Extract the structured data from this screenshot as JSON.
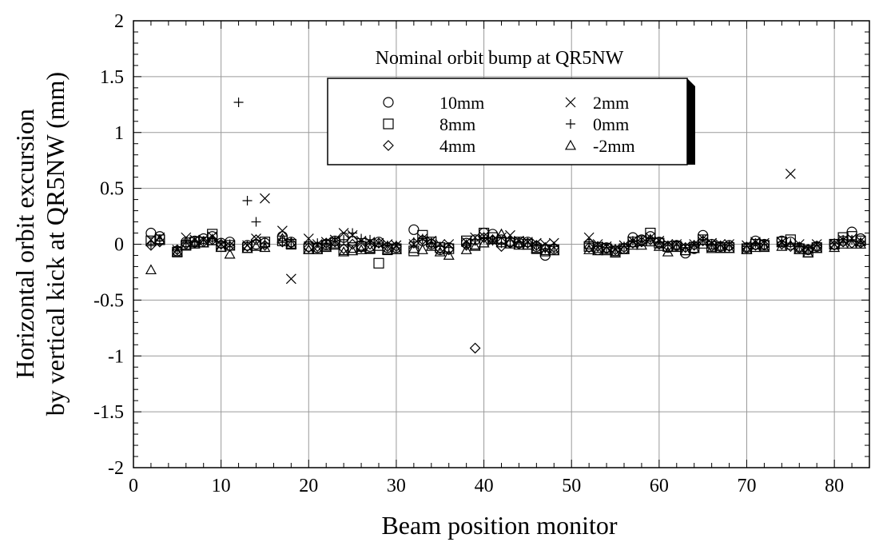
{
  "chart_data": {
    "type": "scatter",
    "title": "",
    "annotation": "Nominal orbit bump at QR5NW",
    "xlabel": "Beam position monitor",
    "ylabel_lines": [
      "Horizontal orbit excursion",
      "by vertical kick at QR5NW (mm)"
    ],
    "xlim": [
      0,
      84
    ],
    "ylim": [
      -2,
      2
    ],
    "xticks": [
      0,
      10,
      20,
      30,
      40,
      50,
      60,
      70,
      80
    ],
    "yticks": [
      2,
      1.5,
      1,
      0.5,
      0,
      -0.5,
      -1,
      -1.5,
      -2
    ],
    "ytick_labels": [
      "2",
      "1.5",
      "1",
      "0.5",
      "0",
      "-0.5",
      "-1",
      "-1.5",
      "-2"
    ],
    "grid": true,
    "legend_position": "top-center",
    "series": [
      {
        "name": "10mm",
        "marker": "circle",
        "x": [
          2,
          3,
          5,
          6,
          7,
          8,
          9,
          10,
          11,
          13,
          14,
          15,
          17,
          18,
          20,
          21,
          22,
          23,
          24,
          25,
          26,
          27,
          28,
          29,
          30,
          32,
          33,
          34,
          35,
          36,
          38,
          39,
          40,
          41,
          42,
          43,
          44,
          45,
          46,
          47,
          48,
          52,
          53,
          54,
          55,
          56,
          57,
          58,
          59,
          60,
          61,
          62,
          63,
          64,
          65,
          66,
          67,
          68,
          70,
          71,
          72,
          74,
          75,
          76,
          77,
          78,
          80,
          81,
          82,
          83
        ],
        "y": [
          0.1,
          0.07,
          -0.06,
          0.02,
          0.03,
          0.05,
          0.07,
          0.01,
          0.02,
          -0.01,
          0.0,
          0.01,
          0.07,
          0.02,
          -0.02,
          -0.03,
          0.0,
          0.03,
          0.06,
          0.03,
          -0.01,
          -0.02,
          0.02,
          -0.03,
          -0.03,
          0.13,
          0.03,
          0.0,
          -0.05,
          -0.03,
          0.01,
          0.04,
          0.1,
          0.09,
          0.04,
          0.02,
          0.01,
          0.02,
          -0.02,
          -0.1,
          -0.04,
          0.0,
          -0.05,
          -0.03,
          -0.06,
          -0.04,
          0.06,
          0.04,
          0.07,
          0.02,
          -0.03,
          -0.01,
          -0.08,
          -0.04,
          0.08,
          0.0,
          -0.02,
          -0.01,
          -0.03,
          0.03,
          0.0,
          0.03,
          0.02,
          -0.03,
          -0.05,
          -0.02,
          0.0,
          0.03,
          0.11,
          0.05
        ]
      },
      {
        "name": "8mm",
        "marker": "square",
        "x": [
          2,
          3,
          5,
          6,
          7,
          8,
          9,
          10,
          11,
          13,
          14,
          15,
          17,
          18,
          20,
          21,
          22,
          23,
          24,
          25,
          26,
          27,
          28,
          29,
          30,
          32,
          33,
          34,
          35,
          36,
          38,
          39,
          40,
          41,
          42,
          43,
          44,
          45,
          46,
          47,
          48,
          52,
          53,
          54,
          55,
          56,
          57,
          58,
          59,
          60,
          61,
          62,
          63,
          64,
          65,
          66,
          67,
          68,
          70,
          71,
          72,
          74,
          75,
          76,
          77,
          78,
          80,
          81,
          82,
          83
        ],
        "y": [
          0.03,
          0.04,
          -0.07,
          -0.01,
          0.02,
          0.02,
          0.09,
          -0.02,
          -0.01,
          -0.03,
          -0.01,
          0.02,
          0.03,
          0.0,
          -0.04,
          -0.04,
          -0.01,
          0.01,
          -0.05,
          -0.03,
          -0.02,
          -0.04,
          -0.17,
          -0.05,
          -0.04,
          -0.06,
          0.08,
          0.02,
          -0.03,
          -0.04,
          0.03,
          0.0,
          0.1,
          0.06,
          0.02,
          0.01,
          0.02,
          0.0,
          -0.04,
          -0.05,
          -0.05,
          -0.02,
          -0.03,
          -0.04,
          -0.06,
          -0.04,
          0.02,
          0.03,
          0.1,
          0.01,
          -0.02,
          -0.02,
          -0.05,
          -0.03,
          0.04,
          -0.02,
          -0.03,
          -0.03,
          -0.04,
          0.0,
          -0.01,
          0.02,
          0.04,
          -0.04,
          -0.07,
          -0.03,
          0.0,
          0.06,
          0.07,
          0.03
        ]
      },
      {
        "name": "4mm",
        "marker": "diamond",
        "x": [
          2,
          3,
          5,
          6,
          7,
          8,
          9,
          10,
          11,
          13,
          14,
          15,
          17,
          18,
          20,
          21,
          22,
          23,
          24,
          25,
          26,
          27,
          28,
          29,
          30,
          32,
          33,
          34,
          35,
          36,
          38,
          39,
          40,
          41,
          42,
          43,
          44,
          45,
          46,
          47,
          48,
          52,
          53,
          54,
          55,
          56,
          57,
          58,
          59,
          60,
          61,
          62,
          63,
          64,
          65,
          66,
          67,
          68,
          70,
          71,
          72,
          74,
          75,
          76,
          77,
          78,
          80,
          81,
          82,
          83
        ],
        "y": [
          -0.01,
          0.02,
          -0.05,
          0.0,
          0.01,
          0.02,
          0.04,
          0.0,
          -0.02,
          -0.02,
          0.04,
          -0.01,
          0.02,
          0.01,
          -0.03,
          -0.02,
          0.01,
          0.02,
          -0.04,
          0.0,
          -0.03,
          0.0,
          0.01,
          -0.02,
          -0.02,
          0.01,
          0.04,
          0.01,
          -0.04,
          -0.05,
          -0.01,
          -0.93,
          0.06,
          0.04,
          -0.02,
          0.01,
          0.0,
          0.01,
          -0.01,
          -0.03,
          -0.03,
          -0.03,
          -0.02,
          -0.04,
          -0.05,
          -0.03,
          0.01,
          0.02,
          0.04,
          0.0,
          -0.02,
          -0.01,
          -0.03,
          -0.01,
          0.03,
          -0.02,
          -0.02,
          -0.02,
          -0.03,
          -0.01,
          -0.01,
          0.0,
          -0.02,
          -0.03,
          -0.05,
          -0.02,
          -0.01,
          0.02,
          0.01,
          0.01
        ]
      },
      {
        "name": "2mm",
        "marker": "x",
        "x": [
          2,
          3,
          5,
          6,
          7,
          8,
          9,
          10,
          11,
          13,
          14,
          15,
          17,
          18,
          20,
          21,
          22,
          23,
          24,
          25,
          26,
          27,
          28,
          29,
          30,
          32,
          33,
          34,
          35,
          36,
          38,
          39,
          40,
          41,
          42,
          43,
          44,
          45,
          46,
          47,
          48,
          52,
          53,
          54,
          55,
          56,
          57,
          58,
          59,
          60,
          61,
          62,
          63,
          64,
          65,
          66,
          67,
          68,
          70,
          71,
          72,
          74,
          75,
          76,
          77,
          78,
          80,
          81,
          82,
          83
        ],
        "y": [
          0.04,
          0.06,
          -0.05,
          0.06,
          0.04,
          0.04,
          0.07,
          0.0,
          -0.01,
          -0.01,
          0.05,
          0.41,
          0.12,
          -0.31,
          0.05,
          0.0,
          0.02,
          0.04,
          0.1,
          0.08,
          0.03,
          0.02,
          0.01,
          0.0,
          -0.01,
          0.0,
          0.05,
          0.03,
          0.0,
          0.0,
          0.02,
          0.06,
          0.07,
          0.03,
          0.06,
          0.08,
          0.03,
          0.02,
          0.01,
          0.0,
          0.01,
          0.06,
          0.0,
          -0.02,
          -0.04,
          -0.01,
          0.03,
          0.04,
          0.06,
          0.03,
          0.0,
          0.0,
          -0.02,
          0.0,
          0.05,
          0.01,
          0.0,
          0.0,
          -0.01,
          0.02,
          0.01,
          0.02,
          0.63,
          0.0,
          -0.04,
          0.0,
          0.0,
          0.04,
          0.05,
          0.03
        ]
      },
      {
        "name": "0mm",
        "marker": "plus",
        "x": [
          2,
          3,
          5,
          6,
          7,
          8,
          9,
          10,
          11,
          12,
          13,
          14,
          15,
          17,
          18,
          20,
          21,
          22,
          23,
          24,
          25,
          26,
          27,
          28,
          29,
          30,
          32,
          33,
          34,
          35,
          36,
          38,
          39,
          40,
          41,
          42,
          43,
          44,
          45,
          46,
          47,
          48,
          52,
          53,
          54,
          55,
          56,
          57,
          58,
          59,
          60,
          61,
          62,
          63,
          64,
          65,
          66,
          67,
          68,
          70,
          71,
          72,
          74,
          75,
          76,
          77,
          78,
          80,
          81,
          82,
          83
        ],
        "y": [
          0.0,
          0.03,
          -0.05,
          0.01,
          0.02,
          0.03,
          0.05,
          0.01,
          0.0,
          1.27,
          0.39,
          0.2,
          0.01,
          0.03,
          0.02,
          0.02,
          0.01,
          0.01,
          0.03,
          0.04,
          0.1,
          0.05,
          0.04,
          0.01,
          -0.01,
          -0.01,
          0.02,
          0.05,
          0.01,
          -0.02,
          -0.03,
          0.0,
          0.03,
          0.05,
          0.03,
          0.01,
          0.03,
          0.02,
          0.01,
          -0.01,
          -0.04,
          -0.02,
          0.01,
          -0.02,
          -0.03,
          -0.04,
          -0.02,
          0.03,
          0.03,
          0.05,
          0.02,
          -0.01,
          -0.01,
          -0.03,
          -0.01,
          0.04,
          0.0,
          -0.01,
          -0.01,
          -0.02,
          0.01,
          0.0,
          0.02,
          0.01,
          -0.02,
          -0.04,
          -0.01,
          0.01,
          0.04,
          0.04,
          0.02
        ]
      },
      {
        "name": "-2mm",
        "marker": "triangle",
        "x": [
          2,
          3,
          5,
          6,
          7,
          8,
          9,
          10,
          11,
          13,
          14,
          15,
          17,
          18,
          20,
          21,
          22,
          23,
          24,
          25,
          26,
          27,
          28,
          29,
          30,
          32,
          33,
          34,
          35,
          36,
          38,
          39,
          40,
          41,
          42,
          43,
          44,
          45,
          46,
          47,
          48,
          52,
          53,
          54,
          55,
          56,
          57,
          58,
          59,
          60,
          61,
          62,
          63,
          64,
          65,
          66,
          67,
          68,
          70,
          71,
          72,
          74,
          75,
          76,
          77,
          78,
          80,
          81,
          82,
          83
        ],
        "y": [
          -0.23,
          0.04,
          -0.07,
          -0.01,
          0.0,
          0.01,
          0.03,
          -0.03,
          -0.09,
          -0.04,
          -0.02,
          -0.03,
          0.05,
          0.0,
          -0.05,
          -0.05,
          -0.03,
          -0.01,
          -0.07,
          -0.06,
          -0.05,
          -0.04,
          -0.02,
          -0.05,
          -0.05,
          -0.04,
          -0.05,
          -0.02,
          -0.07,
          -0.1,
          -0.05,
          -0.02,
          0.01,
          0.04,
          0.09,
          0.02,
          -0.01,
          -0.01,
          -0.04,
          -0.07,
          -0.06,
          -0.05,
          -0.06,
          -0.06,
          -0.08,
          -0.05,
          -0.01,
          -0.01,
          0.02,
          -0.02,
          -0.07,
          -0.03,
          -0.06,
          -0.04,
          0.0,
          -0.04,
          -0.04,
          -0.04,
          -0.05,
          -0.03,
          -0.03,
          -0.02,
          -0.01,
          -0.05,
          -0.08,
          -0.04,
          -0.03,
          0.0,
          0.0,
          0.0
        ]
      }
    ]
  }
}
